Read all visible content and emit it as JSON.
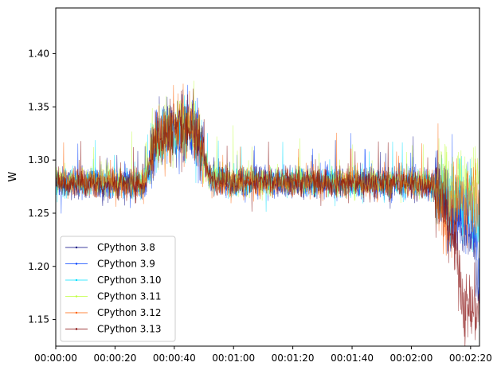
{
  "chart_data": {
    "type": "line",
    "title": "",
    "xlabel": "",
    "ylabel": "W",
    "x_range_seconds_label": [
      "00:00:00",
      "00:02:23"
    ],
    "xlim": [
      "00:00:00",
      "00:02:23"
    ],
    "ylim": [
      1.125,
      1.443
    ],
    "x_ticks": [
      "00:00:00",
      "00:00:20",
      "00:00:40",
      "00:01:00",
      "00:01:20",
      "00:01:40",
      "00:02:00",
      "00:02:20"
    ],
    "y_ticks": [
      1.15,
      1.2,
      1.25,
      1.3,
      1.35,
      1.4
    ],
    "y_tick_labels": [
      "1.15",
      "1.20",
      "1.25",
      "1.30",
      "1.35",
      "1.40"
    ],
    "grid": false,
    "legend_position": "lower-left",
    "series": [
      {
        "name": "CPython 3.8",
        "color": "#000080",
        "profile": [
          [
            0,
            1.278
          ],
          [
            30,
            1.278
          ],
          [
            34,
            1.32
          ],
          [
            44,
            1.33
          ],
          [
            48,
            1.32
          ],
          [
            52,
            1.284
          ],
          [
            60,
            1.28
          ],
          [
            120,
            1.278
          ],
          [
            128,
            1.276
          ],
          [
            132,
            1.255
          ],
          [
            140,
            1.24
          ],
          [
            143,
            1.17
          ]
        ]
      },
      {
        "name": "CPython 3.9",
        "color": "#0040ff",
        "profile": [
          [
            0,
            1.278
          ],
          [
            30,
            1.277
          ],
          [
            34,
            1.318
          ],
          [
            44,
            1.33
          ],
          [
            48,
            1.318
          ],
          [
            52,
            1.282
          ],
          [
            60,
            1.279
          ],
          [
            120,
            1.277
          ],
          [
            128,
            1.275
          ],
          [
            132,
            1.258
          ],
          [
            140,
            1.25
          ],
          [
            143,
            1.2
          ]
        ]
      },
      {
        "name": "CPython 3.10",
        "color": "#00e0ff",
        "profile": [
          [
            0,
            1.279
          ],
          [
            30,
            1.278
          ],
          [
            34,
            1.32
          ],
          [
            44,
            1.331
          ],
          [
            48,
            1.319
          ],
          [
            52,
            1.283
          ],
          [
            60,
            1.28
          ],
          [
            120,
            1.278
          ],
          [
            128,
            1.276
          ],
          [
            133,
            1.265
          ],
          [
            140,
            1.258
          ],
          [
            143,
            1.25
          ]
        ]
      },
      {
        "name": "CPython 3.11",
        "color": "#c0ff40",
        "profile": [
          [
            0,
            1.28
          ],
          [
            30,
            1.279
          ],
          [
            34,
            1.321
          ],
          [
            44,
            1.332
          ],
          [
            48,
            1.32
          ],
          [
            52,
            1.284
          ],
          [
            60,
            1.281
          ],
          [
            120,
            1.279
          ],
          [
            128,
            1.278
          ],
          [
            133,
            1.278
          ],
          [
            140,
            1.278
          ],
          [
            143,
            1.278
          ]
        ]
      },
      {
        "name": "CPython 3.12",
        "color": "#ff6000",
        "profile": [
          [
            0,
            1.279
          ],
          [
            30,
            1.278
          ],
          [
            34,
            1.322
          ],
          [
            44,
            1.333
          ],
          [
            48,
            1.321
          ],
          [
            52,
            1.28
          ],
          [
            60,
            1.278
          ],
          [
            120,
            1.278
          ],
          [
            128,
            1.275
          ],
          [
            132,
            1.24
          ],
          [
            136,
            1.26
          ],
          [
            143,
            1.27
          ]
        ]
      },
      {
        "name": "CPython 3.13",
        "color": "#800000",
        "profile": [
          [
            0,
            1.278
          ],
          [
            30,
            1.277
          ],
          [
            34,
            1.322
          ],
          [
            44,
            1.333
          ],
          [
            48,
            1.322
          ],
          [
            52,
            1.283
          ],
          [
            60,
            1.28
          ],
          [
            120,
            1.278
          ],
          [
            128,
            1.276
          ],
          [
            132,
            1.25
          ],
          [
            136,
            1.2
          ],
          [
            138,
            1.16
          ]
        ]
      }
    ]
  }
}
